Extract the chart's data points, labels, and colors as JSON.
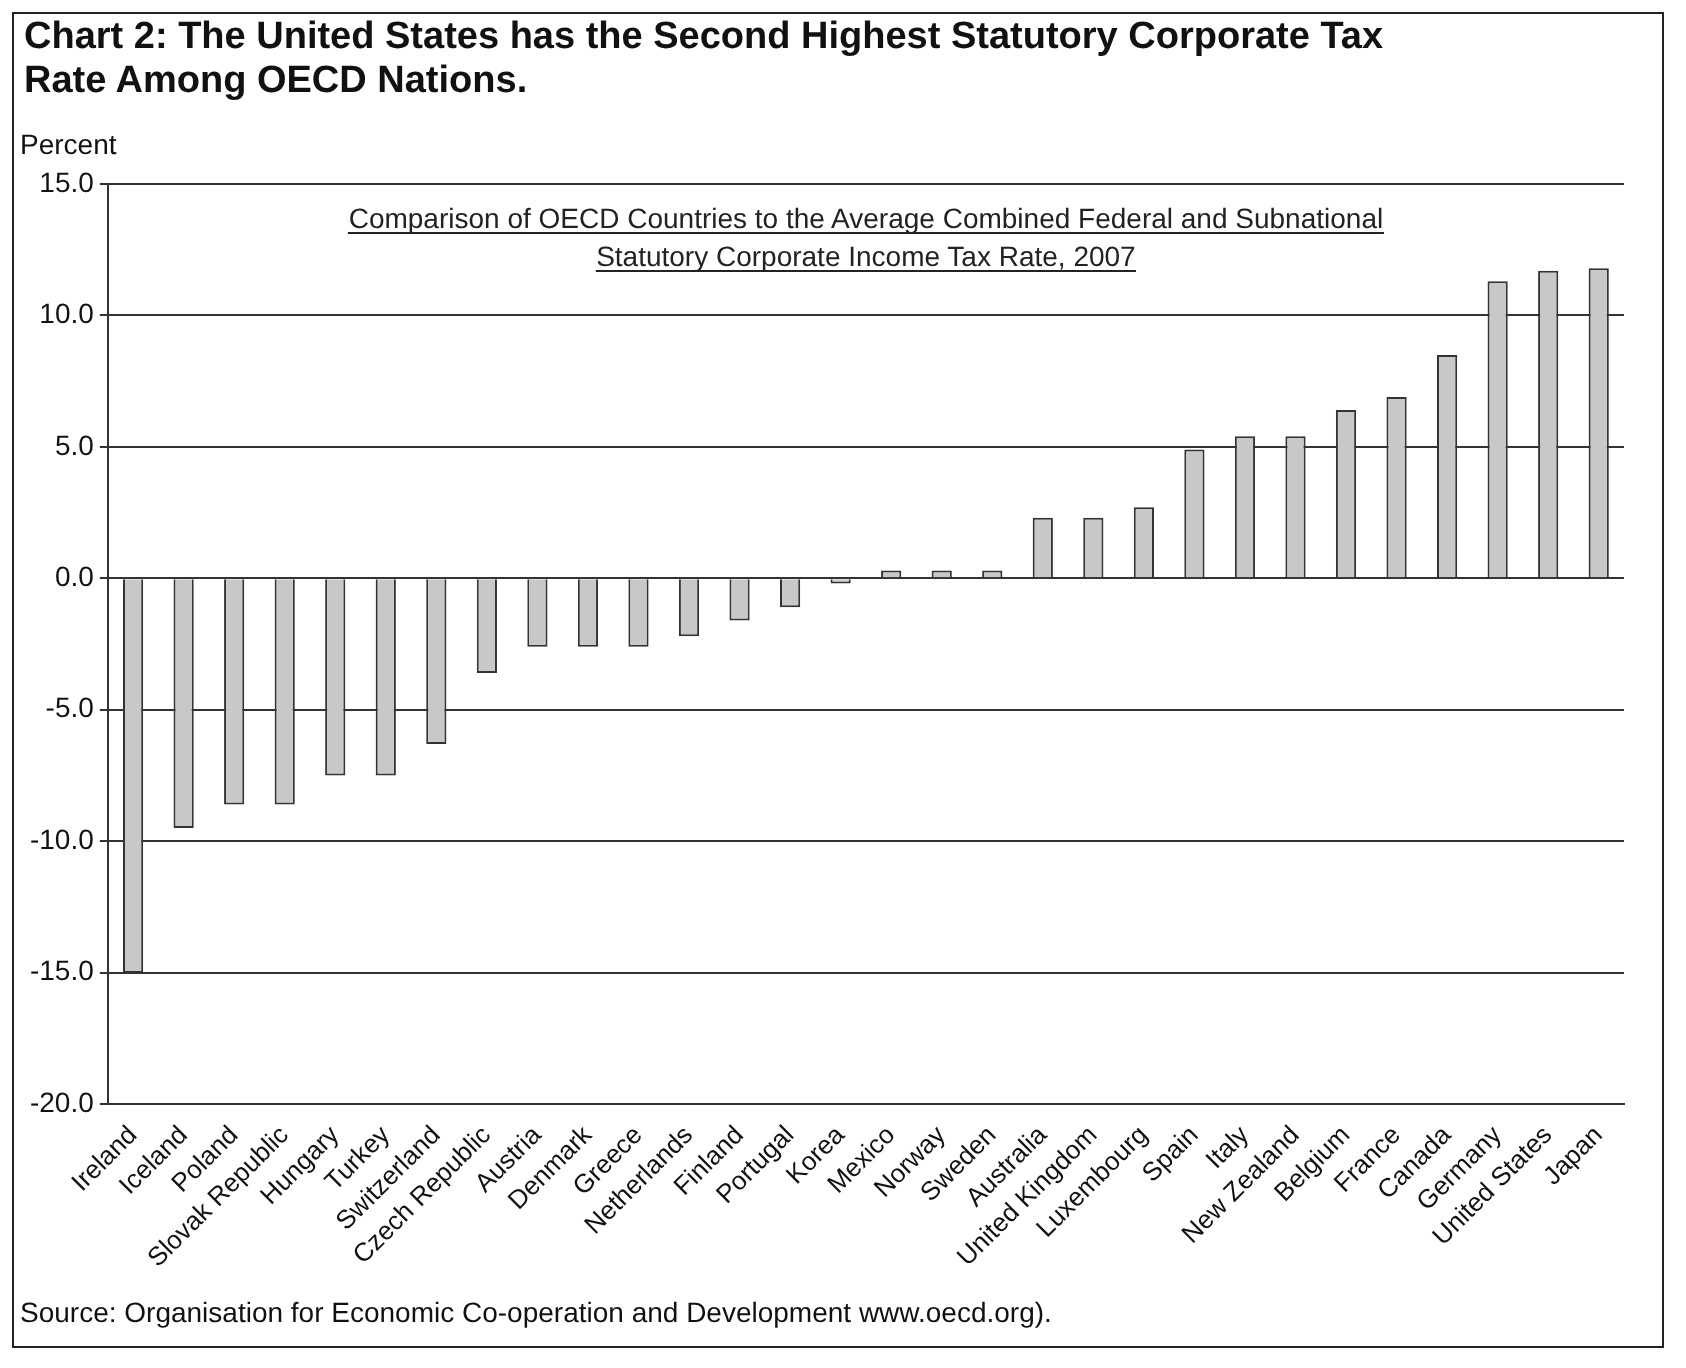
{
  "chart_data": {
    "type": "bar",
    "title": "Chart 2:  The United States has the Second Highest Statutory Corporate Tax Rate Among OECD Nations.",
    "subtitle": "Comparison of OECD Countries to the Average Combined Federal and Subnational Statutory Corporate Income Tax Rate, 2007",
    "ylabel": "Percent",
    "categories": [
      "Ireland",
      "Iceland",
      "Poland",
      "Slovak Republic",
      "Hungary",
      "Turkey",
      "Switzerland",
      "Czech Republic",
      "Austria",
      "Denmark",
      "Greece",
      "Netherlands",
      "Finland",
      "Portugal",
      "Korea",
      "Mexico",
      "Norway",
      "Sweden",
      "Australia",
      "United Kingdom",
      "Luxembourg",
      "Spain",
      "Italy",
      "New Zealand",
      "Belgium",
      "France",
      "Canada",
      "Germany",
      "United States",
      "Japan"
    ],
    "values": [
      -15.0,
      -9.5,
      -8.6,
      -8.6,
      -7.5,
      -7.5,
      -6.3,
      -3.6,
      -2.6,
      -2.6,
      -2.6,
      -2.2,
      -1.6,
      -1.1,
      -0.2,
      0.3,
      0.3,
      0.3,
      2.3,
      2.3,
      2.7,
      4.9,
      5.4,
      5.4,
      6.4,
      6.9,
      8.5,
      11.3,
      11.7,
      11.8
    ],
    "color": "#c8c8c8",
    "ylim": [
      -20,
      15
    ],
    "yticks": [
      {
        "value": -20,
        "label": "-20.0"
      },
      {
        "value": -15,
        "label": "-15.0"
      },
      {
        "value": -10,
        "label": "-10.0"
      },
      {
        "value": -5,
        "label": "-5.0"
      },
      {
        "value": 0,
        "label": "0.0"
      },
      {
        "value": 5,
        "label": "5.0"
      },
      {
        "value": 10,
        "label": "10.0"
      },
      {
        "value": 15,
        "label": "15.0"
      }
    ],
    "grid": "y",
    "legend": false,
    "annotations": [
      "Source:  Organisation for Economic Co-operation and Development www.oecd.org)."
    ]
  }
}
